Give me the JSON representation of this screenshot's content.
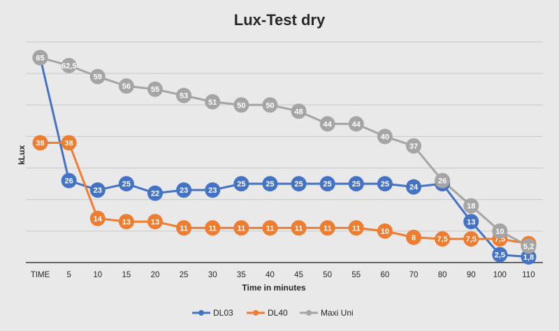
{
  "chart_data": {
    "type": "line",
    "title": "Lux-Test dry",
    "xlabel": "Time in minutes",
    "ylabel": "kLux",
    "categories": [
      "TIME",
      "5",
      "10",
      "15",
      "20",
      "25",
      "30",
      "35",
      "40",
      "45",
      "50",
      "55",
      "60",
      "70",
      "80",
      "90",
      "100",
      "110"
    ],
    "ylim": [
      0,
      70
    ],
    "grid": true,
    "legend_position": "bottom",
    "series": [
      {
        "name": "DL03",
        "color": "#4472c4",
        "values": [
          65,
          26,
          23,
          25,
          22,
          23,
          23,
          25,
          25,
          25,
          25,
          25,
          25,
          24,
          25,
          13,
          2.5,
          1.8
        ],
        "labels": [
          "",
          "26",
          "23",
          "25",
          "22",
          "23",
          "23",
          "25",
          "25",
          "25",
          "25",
          "25",
          "25",
          "24",
          "25",
          "13",
          "2,5",
          "1,8"
        ]
      },
      {
        "name": "DL40",
        "color": "#ed7d31",
        "values": [
          38,
          38,
          14,
          13,
          13,
          11,
          11,
          11,
          11,
          11,
          11,
          11,
          10,
          8,
          7.5,
          7.5,
          7.5,
          6
        ],
        "labels": [
          "38",
          "38",
          "14",
          "13",
          "13",
          "11",
          "11",
          "11",
          "11",
          "11",
          "11",
          "11",
          "10",
          "8",
          "7,5",
          "7,5",
          "7,5",
          "6"
        ]
      },
      {
        "name": "Maxi Uni",
        "color": "#a5a5a5",
        "values": [
          65,
          62.5,
          59,
          56,
          55,
          53,
          51,
          50,
          50,
          48,
          44,
          44,
          40,
          37,
          26,
          18,
          10,
          5.2
        ],
        "labels": [
          "65",
          "62,5",
          "59",
          "56",
          "55",
          "53",
          "51",
          "50",
          "50",
          "48",
          "44",
          "44",
          "40",
          "37",
          "26",
          "18",
          "10",
          "5,2"
        ]
      }
    ]
  }
}
